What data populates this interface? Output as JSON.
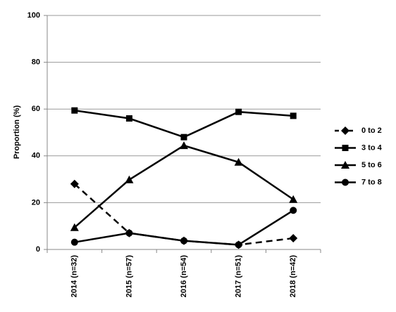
{
  "chart_data": {
    "type": "line",
    "y_label": "Proportion (%)",
    "categories": [
      "2014 (n=32)",
      "2015 (n=57)",
      "2016 (n=54)",
      "2017 (n=51)",
      "2018 (n=42)"
    ],
    "series": [
      {
        "name": "0 to 2",
        "color": "#000000",
        "dashed": true,
        "marker": "diamond",
        "values": [
          28,
          7,
          3.7,
          2,
          4.8
        ]
      },
      {
        "name": "3 to 4",
        "color": "#000000",
        "dashed": false,
        "marker": "square",
        "values": [
          59.4,
          56,
          48,
          58.8,
          57.1
        ]
      },
      {
        "name": "5 to 6",
        "color": "#000000",
        "dashed": false,
        "marker": "triangle",
        "values": [
          9.4,
          29.8,
          44.4,
          37.3,
          21.4
        ]
      },
      {
        "name": "7 to 8",
        "color": "#000000",
        "dashed": false,
        "marker": "circle",
        "values": [
          3.1,
          7,
          3.7,
          2,
          16.7
        ]
      }
    ],
    "ylim": [
      0,
      100
    ],
    "yticks": [
      0,
      20,
      40,
      60,
      80,
      100
    ],
    "grid": true,
    "legend": "right"
  }
}
